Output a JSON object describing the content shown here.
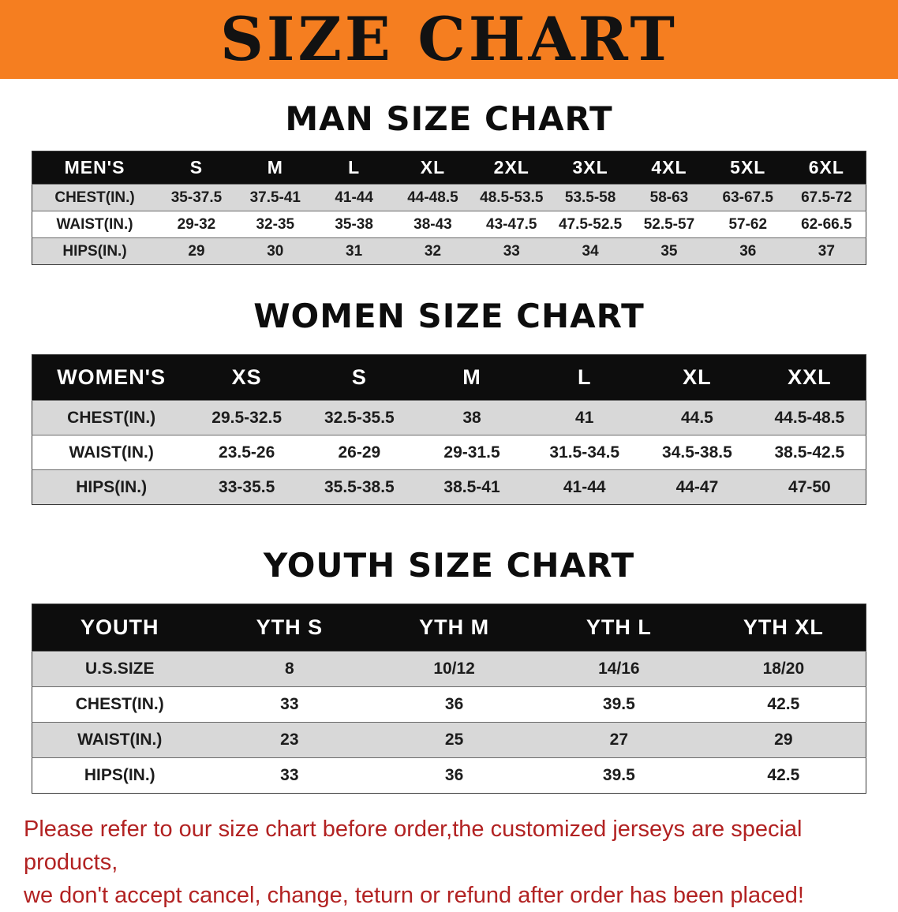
{
  "banner": {
    "title": "SIZE CHART"
  },
  "colors": {
    "banner_bg": "#F57E20",
    "table_header_bg": "#0D0D0D",
    "row_alt_bg": "#D8D8D8",
    "disclaimer_text": "#B22222"
  },
  "sections": [
    {
      "heading": "MAN SIZE CHART",
      "table": {
        "header": [
          "MEN'S",
          "S",
          "M",
          "L",
          "XL",
          "2XL",
          "3XL",
          "4XL",
          "5XL",
          "6XL"
        ],
        "rows": [
          {
            "label": "CHEST(IN.)",
            "values": [
              "35-37.5",
              "37.5-41",
              "41-44",
              "44-48.5",
              "48.5-53.5",
              "53.5-58",
              "58-63",
              "63-67.5",
              "67.5-72"
            ]
          },
          {
            "label": "WAIST(IN.)",
            "values": [
              "29-32",
              "32-35",
              "35-38",
              "38-43",
              "43-47.5",
              "47.5-52.5",
              "52.5-57",
              "57-62",
              "62-66.5"
            ]
          },
          {
            "label": "HIPS(IN.)",
            "values": [
              "29",
              "30",
              "31",
              "32",
              "33",
              "34",
              "35",
              "36",
              "37"
            ]
          }
        ]
      }
    },
    {
      "heading": "WOMEN SIZE CHART",
      "table": {
        "header": [
          "WOMEN'S",
          "XS",
          "S",
          "M",
          "L",
          "XL",
          "XXL"
        ],
        "rows": [
          {
            "label": "CHEST(IN.)",
            "values": [
              "29.5-32.5",
              "32.5-35.5",
              "38",
              "41",
              "44.5",
              "44.5-48.5"
            ]
          },
          {
            "label": "WAIST(IN.)",
            "values": [
              "23.5-26",
              "26-29",
              "29-31.5",
              "31.5-34.5",
              "34.5-38.5",
              "38.5-42.5"
            ]
          },
          {
            "label": "HIPS(IN.)",
            "values": [
              "33-35.5",
              "35.5-38.5",
              "38.5-41",
              "41-44",
              "44-47",
              "47-50"
            ]
          }
        ]
      }
    },
    {
      "heading": "YOUTH SIZE CHART",
      "table": {
        "header": [
          "YOUTH",
          "YTH S",
          "YTH M",
          "YTH L",
          "YTH XL"
        ],
        "rows": [
          {
            "label": "U.S.SIZE",
            "values": [
              "8",
              "10/12",
              "14/16",
              "18/20"
            ]
          },
          {
            "label": "CHEST(IN.)",
            "values": [
              "33",
              "36",
              "39.5",
              "42.5"
            ]
          },
          {
            "label": "WAIST(IN.)",
            "values": [
              "23",
              "25",
              "27",
              "29"
            ]
          },
          {
            "label": "HIPS(IN.)",
            "values": [
              "33",
              "36",
              "39.5",
              "42.5"
            ]
          }
        ]
      }
    }
  ],
  "disclaimer": {
    "line1": "Please refer to our size chart before order,the customized jerseys are special products,",
    "line2": "we don't accept cancel, change, teturn or refund after order has been placed!"
  }
}
